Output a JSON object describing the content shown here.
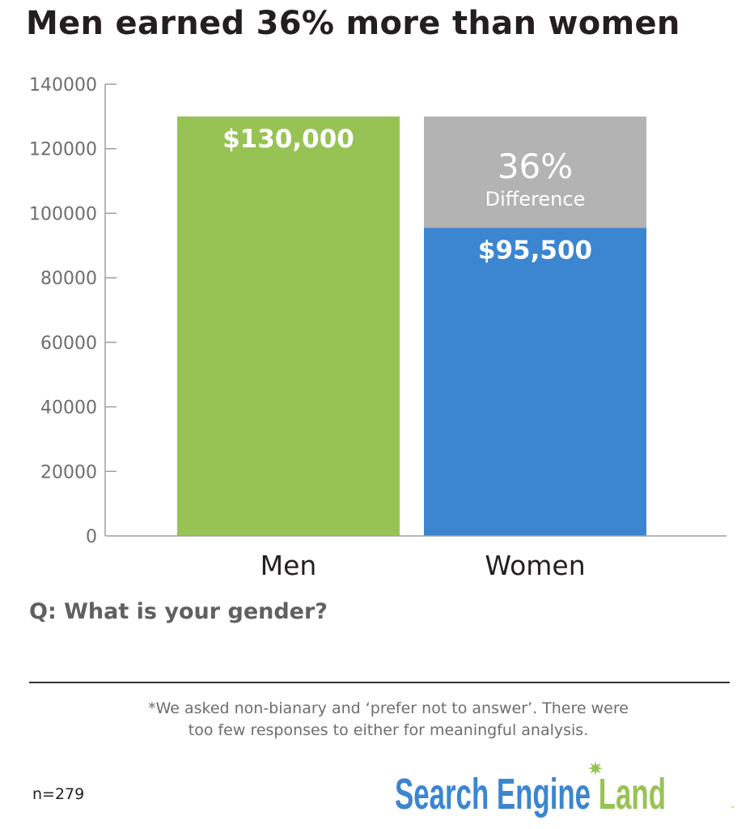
{
  "title": "Men earned 36% more than women",
  "chart_data": {
    "type": "bar",
    "stacked": true,
    "categories": [
      "Men",
      "Women"
    ],
    "series": [
      {
        "values": [
          130000,
          95500
        ],
        "color": "#97c355"
      },
      {
        "values": [
          0,
          34500
        ],
        "color": "#b3b3b3"
      }
    ],
    "bar_colors": {
      "Men": "#97c355",
      "Women": "#3c85d0",
      "difference": "#b3b3b3"
    },
    "data_labels": {
      "Men": "$130,000",
      "Women": "$95,500"
    },
    "annotation": {
      "value": "36%",
      "label": "Difference"
    },
    "ylim": [
      0,
      140000
    ],
    "yticks": [
      0,
      20000,
      40000,
      60000,
      80000,
      100000,
      120000,
      140000
    ],
    "xlabel": "",
    "ylabel": "",
    "grid": false,
    "legend": "none"
  },
  "question": "Q: What is your gender?",
  "footnote": {
    "line1": "*We asked non-bianary and ‘prefer not to answer’. There were",
    "line2": "too few responses to either for meaningful analysis."
  },
  "sample_size": "n=279",
  "logo": {
    "text_part1": "Search Engine",
    "text_part2": "Land",
    "trademark": "™",
    "color_blue": "#3c85d0",
    "color_green": "#97c355",
    "icon": "green-starburst-icon"
  }
}
